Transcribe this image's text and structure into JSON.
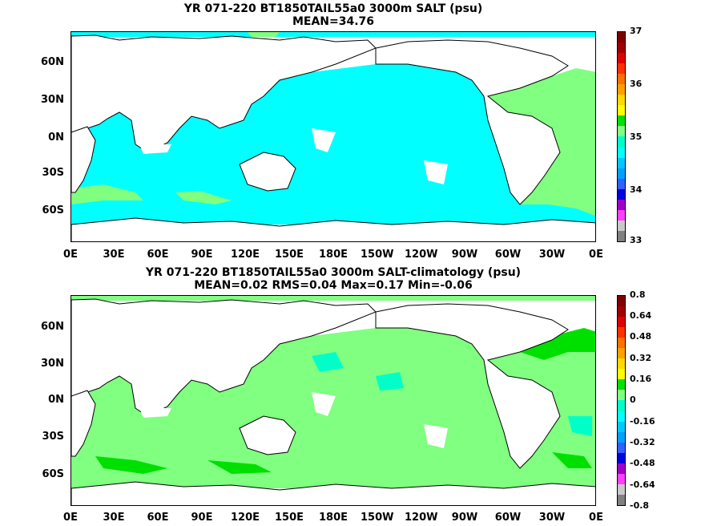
{
  "panel1": {
    "title": "YR 071-220 BT1850TAIL55a0 3000m SALT (psu)",
    "subtitle": "MEAN=34.76",
    "colorbar_labels": [
      "37",
      "36",
      "35",
      "34",
      "33"
    ],
    "palette": [
      "#808080",
      "#c8c8c8",
      "#ff40ff",
      "#a000c8",
      "#0000e0",
      "#3060ff",
      "#00a0ff",
      "#00c8ff",
      "#00ffff",
      "#00ffc8",
      "#80ff80",
      "#00e000",
      "#ffff00",
      "#ffd800",
      "#ffa000",
      "#ff7000",
      "#ff3000",
      "#e00000",
      "#a00000",
      "#800000"
    ]
  },
  "panel2": {
    "title": "YR 071-220 BT1850TAIL55a0 3000m SALT-climatology (psu)",
    "subtitle": "MEAN=0.02   RMS=0.04   Max=0.17   Min=-0.06",
    "colorbar_labels": [
      "0.8",
      "0.64",
      "0.48",
      "0.32",
      "0.16",
      "0",
      "-0.16",
      "-0.32",
      "-0.48",
      "-0.64",
      "-0.8"
    ],
    "palette": [
      "#808080",
      "#c8c8c8",
      "#ff40ff",
      "#a000c8",
      "#0000e0",
      "#3060ff",
      "#00a0ff",
      "#00c8ff",
      "#00ffff",
      "#00ffc8",
      "#80ff80",
      "#00e000",
      "#ffff00",
      "#ffd800",
      "#ffa000",
      "#ff7000",
      "#ff3000",
      "#e00000",
      "#a00000",
      "#800000"
    ]
  },
  "lat_labels": [
    "60N",
    "30N",
    "0N",
    "30S",
    "60S"
  ],
  "lon_labels": [
    "0E",
    "30E",
    "60E",
    "90E",
    "120E",
    "150E",
    "180E",
    "150W",
    "120W",
    "90W",
    "60W",
    "30W",
    "0E"
  ],
  "colors": {
    "salt_main": "#00ffff",
    "salt_high": "#80ff80",
    "diff_main": "#80ff80",
    "diff_high": "#00e000",
    "diff_low": "#00ffc8",
    "land": "#ffffff"
  }
}
